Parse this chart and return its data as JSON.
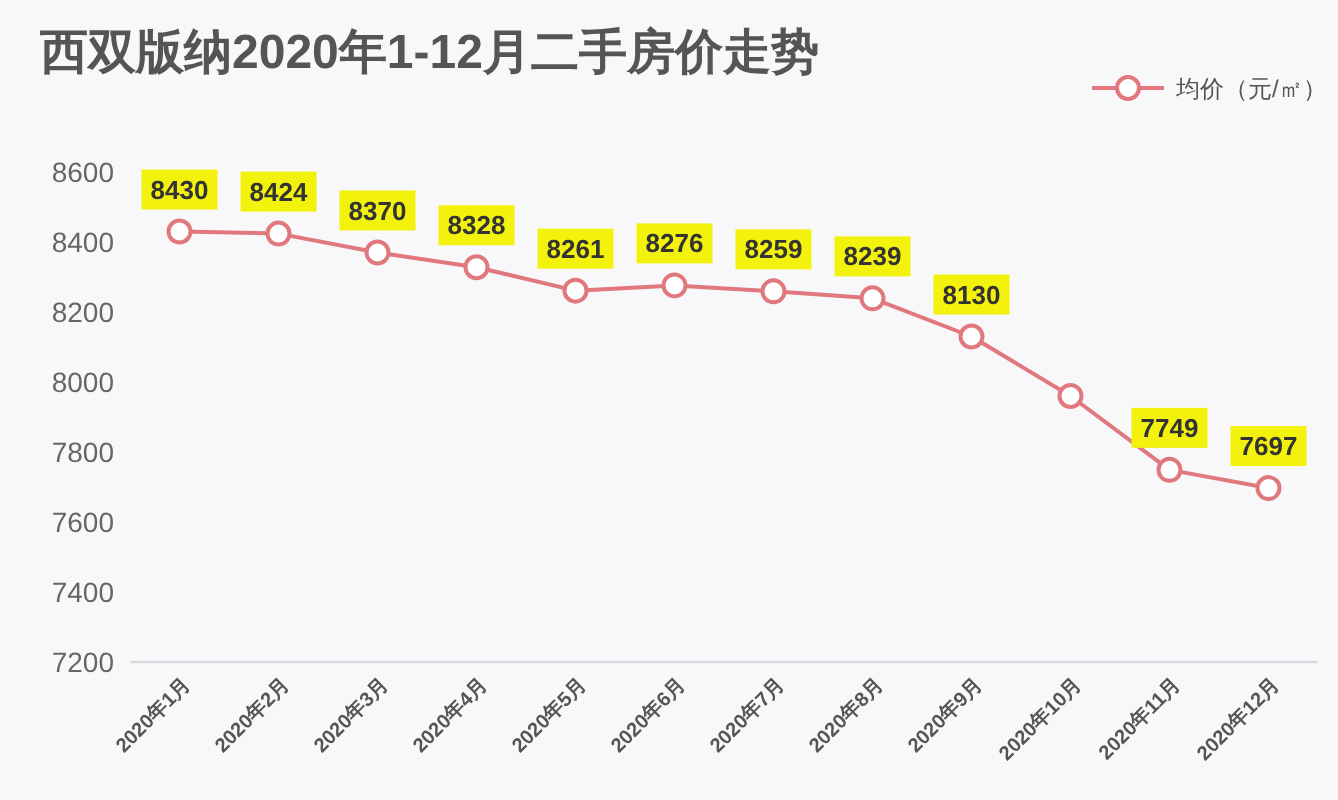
{
  "chart_data": {
    "type": "line",
    "title": "西双版纳2020年1-12月二手房价走势",
    "categories": [
      "2020年1月",
      "2020年2月",
      "2020年3月",
      "2020年4月",
      "2020年5月",
      "2020年6月",
      "2020年7月",
      "2020年8月",
      "2020年9月",
      "2020年10月",
      "2020年11月",
      "2020年12月"
    ],
    "series": [
      {
        "name": "均价（元/㎡）",
        "color": "#e0787e",
        "values": [
          8430,
          8424,
          8370,
          8328,
          8261,
          8276,
          8259,
          8239,
          8130,
          7960,
          7749,
          7697
        ],
        "value_labels": [
          "8430",
          "8424",
          "8370",
          "8328",
          "8261",
          "8276",
          "8259",
          "8239",
          "8130",
          null,
          "7749",
          "7697"
        ]
      }
    ],
    "ylim": [
      7200,
      8600
    ],
    "yticks": [
      7200,
      7400,
      7600,
      7800,
      8000,
      8200,
      8400,
      8600
    ],
    "legend": "top right",
    "marker": "circle",
    "line_style": "solid"
  }
}
